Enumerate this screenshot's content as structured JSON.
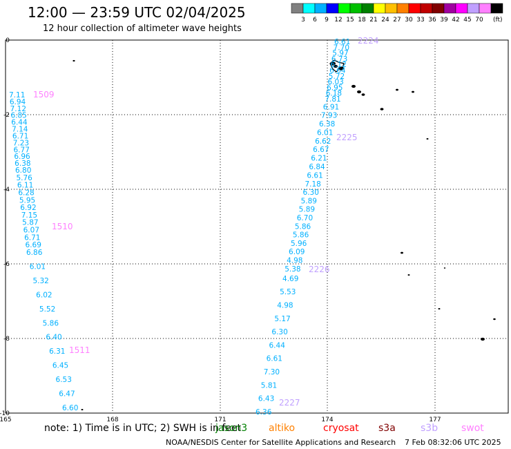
{
  "header": {
    "title": "12:00 — 23:59 UTC 02/04/2025",
    "subtitle": "12 hour collection of altimeter wave heights"
  },
  "legend": {
    "unit": "(ft)",
    "items": [
      {
        "label": "",
        "color": "#808080"
      },
      {
        "label": "3",
        "color": "#00ffff"
      },
      {
        "label": "6",
        "color": "#00b0ff"
      },
      {
        "label": "9",
        "color": "#0000ff"
      },
      {
        "label": "12",
        "color": "#00ff00"
      },
      {
        "label": "15",
        "color": "#00c000"
      },
      {
        "label": "18",
        "color": "#008000"
      },
      {
        "label": "21",
        "color": "#ffff00"
      },
      {
        "label": "24",
        "color": "#ffc000"
      },
      {
        "label": "27",
        "color": "#ff8000"
      },
      {
        "label": "30",
        "color": "#ff0000"
      },
      {
        "label": "33",
        "color": "#c00000"
      },
      {
        "label": "36",
        "color": "#800000"
      },
      {
        "label": "39",
        "color": "#a000a0"
      },
      {
        "label": "42",
        "color": "#ff00ff"
      },
      {
        "label": "45",
        "color": "#c0a0ff"
      },
      {
        "label": "70",
        "color": "#ff80ff"
      },
      {
        "label": "",
        "color": "#000000"
      }
    ]
  },
  "map": {
    "lon_ticks": [
      "165",
      "168",
      "171",
      "174",
      "177"
    ],
    "lat_ticks": [
      "0",
      "-2",
      "-4",
      "-6",
      "-8",
      "-10"
    ]
  },
  "tracks": [
    {
      "pass_labels": [
        {
          "text": "1509",
          "color": "#ff80ff"
        },
        {
          "text": "1510",
          "color": "#ff80ff"
        },
        {
          "text": "1511",
          "color": "#ff80ff"
        }
      ],
      "values": [
        "7.11",
        "6.94",
        "7.12",
        "6.85",
        "6.44",
        "7.14",
        "6.71",
        "7.23",
        "6.77",
        "6.96",
        "6.38",
        "6.80",
        "5.76",
        "6.11",
        "6.28",
        "5.95",
        "6.92",
        "7.15",
        "5.87",
        "6.07",
        "6.71",
        "6.69",
        "6.86",
        "6.01",
        "5.32",
        "6.02",
        "5.52",
        "5.86",
        "6.40",
        "6.31",
        "6.45",
        "6.53",
        "6.47",
        "6.60"
      ]
    },
    {
      "pass_labels": [
        {
          "text": "2224",
          "color": "#c0a0ff"
        },
        {
          "text": "2225",
          "color": "#c0a0ff"
        },
        {
          "text": "2226",
          "color": "#c0a0ff"
        },
        {
          "text": "2227",
          "color": "#c0a0ff"
        }
      ],
      "values": [
        "6.61",
        "7.70",
        "5.97",
        "6.73",
        "6.12",
        "6.64",
        "5.72",
        "6.03",
        "6.95",
        "6.18",
        "7.81",
        "6.91",
        "7.93",
        "6.38",
        "6.01",
        "6.62",
        "6.67",
        "6.21",
        "6.84",
        "6.61",
        "7.18",
        "6.30",
        "5.89",
        "5.89",
        "6.70",
        "5.86",
        "5.86",
        "5.96",
        "6.09",
        "4.98",
        "5.38",
        "4.69",
        "5.53",
        "4.98",
        "5.17",
        "6.30",
        "6.44",
        "6.61",
        "7.30",
        "5.81",
        "6.43",
        "6.36"
      ]
    }
  ],
  "footer": {
    "note": "note:  1) Time is in UTC; 2) SWH is in feet",
    "satellites": [
      {
        "name": "jason3",
        "color": "#008000"
      },
      {
        "name": "altiko",
        "color": "#ff8000"
      },
      {
        "name": "cryosat",
        "color": "#ff0000"
      },
      {
        "name": "s3a",
        "color": "#800000"
      },
      {
        "name": "s3b",
        "color": "#c0a0ff"
      },
      {
        "name": "swot",
        "color": "#ff80ff"
      }
    ],
    "credit": "NOAA/NESDIS Center for Satellite Applications and Research",
    "timestamp": "7 Feb 08:32:06 UTC 2025"
  }
}
